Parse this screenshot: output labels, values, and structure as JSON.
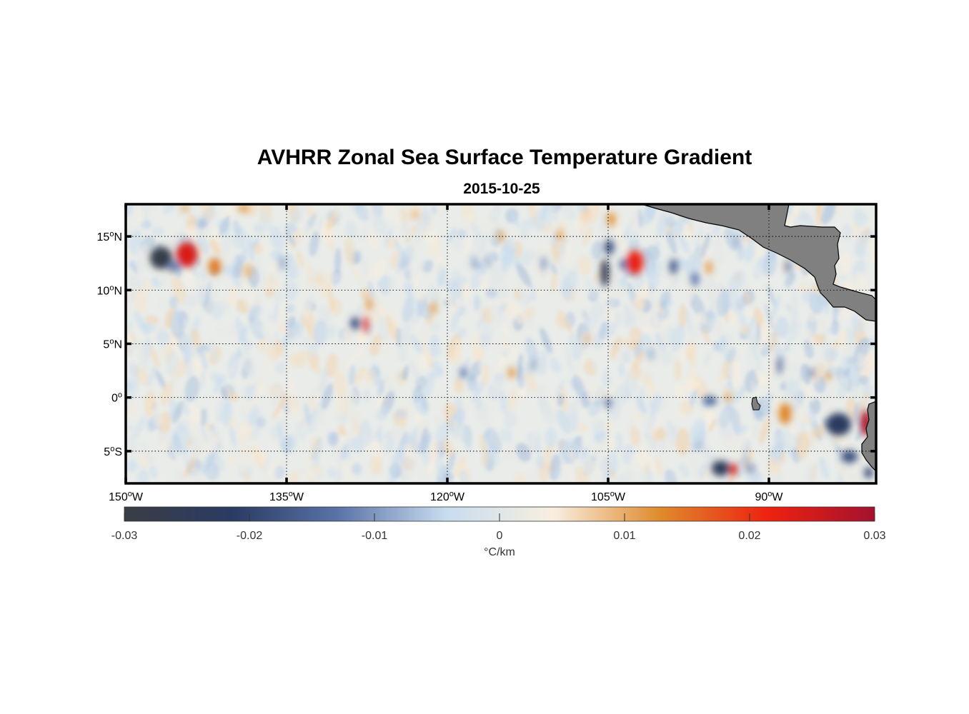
{
  "title": "AVHRR Zonal Sea Surface Temperature Gradient",
  "subtitle": "2015-10-25",
  "map": {
    "lon_range": [
      -150,
      -80
    ],
    "lat_range": [
      -8,
      18
    ],
    "lon_ticks": [
      {
        "value": -150,
        "label": "150",
        "suffix": "W"
      },
      {
        "value": -135,
        "label": "135",
        "suffix": "W"
      },
      {
        "value": -120,
        "label": "120",
        "suffix": "W"
      },
      {
        "value": -105,
        "label": "105",
        "suffix": "W"
      },
      {
        "value": -90,
        "label": "90",
        "suffix": "W"
      }
    ],
    "lat_ticks": [
      {
        "value": 15,
        "label": "15",
        "suffix": "N"
      },
      {
        "value": 10,
        "label": "10",
        "suffix": "N"
      },
      {
        "value": 5,
        "label": "5",
        "suffix": "N"
      },
      {
        "value": 0,
        "label": "0",
        "suffix": ""
      },
      {
        "value": -5,
        "label": "5",
        "suffix": "S"
      }
    ],
    "grid": true,
    "land_color": "#808080",
    "ocean_base_color": "#e9ece9"
  },
  "colorbar": {
    "min": -0.03,
    "max": 0.03,
    "ticks": [
      "-0.03",
      "-0.02",
      "-0.01",
      "0",
      "0.01",
      "0.02",
      "0.03"
    ],
    "units": "°C/km",
    "colors": [
      "#3a3d45",
      "#2a3b63",
      "#5b73a8",
      "#c8dcef",
      "#f8efe0",
      "#e08a2c",
      "#ee2210",
      "#a3122e"
    ]
  },
  "features": [
    {
      "lon": -146.7,
      "lat": 13.0,
      "v": -0.028,
      "rx": 1.6,
      "ry": 1.6
    },
    {
      "lon": -144.3,
      "lat": 13.3,
      "v": 0.024,
      "rx": 1.5,
      "ry": 1.8
    },
    {
      "lon": -145.5,
      "lat": 12.2,
      "v": -0.012,
      "rx": 0.9,
      "ry": 0.8
    },
    {
      "lon": -141.7,
      "lat": 12.2,
      "v": 0.014,
      "rx": 0.9,
      "ry": 1.2
    },
    {
      "lon": -138.6,
      "lat": 11.8,
      "v": 0.009,
      "rx": 0.6,
      "ry": 1.0
    },
    {
      "lon": -135.4,
      "lat": 12.5,
      "v": -0.009,
      "rx": 0.4,
      "ry": 1.0
    },
    {
      "lon": -128.6,
      "lat": 6.9,
      "v": -0.018,
      "rx": 0.7,
      "ry": 0.9
    },
    {
      "lon": -127.6,
      "lat": 6.8,
      "v": 0.024,
      "rx": 0.35,
      "ry": 1.2
    },
    {
      "lon": -127.3,
      "lat": 8.7,
      "v": 0.013,
      "rx": 0.35,
      "ry": 1.0
    },
    {
      "lon": -121.3,
      "lat": 8.3,
      "v": 0.012,
      "rx": 0.4,
      "ry": 0.9
    },
    {
      "lon": -117.5,
      "lat": 12.6,
      "v": -0.008,
      "rx": 0.4,
      "ry": 1.0
    },
    {
      "lon": -116.2,
      "lat": 12.7,
      "v": -0.008,
      "rx": 0.4,
      "ry": 1.0
    },
    {
      "lon": -115.0,
      "lat": 15.0,
      "v": 0.011,
      "rx": 0.4,
      "ry": 0.9
    },
    {
      "lon": -111.0,
      "lat": 12.5,
      "v": -0.01,
      "rx": 0.4,
      "ry": 1.0
    },
    {
      "lon": -105.3,
      "lat": 11.6,
      "v": -0.025,
      "rx": 0.6,
      "ry": 2.0
    },
    {
      "lon": -104.9,
      "lat": 14.0,
      "v": -0.018,
      "rx": 0.7,
      "ry": 1.1
    },
    {
      "lon": -104.7,
      "lat": 16.6,
      "v": 0.012,
      "rx": 0.6,
      "ry": 1.0
    },
    {
      "lon": -102.5,
      "lat": 12.6,
      "v": 0.022,
      "rx": 1.2,
      "ry": 1.7
    },
    {
      "lon": -103.6,
      "lat": 12.4,
      "v": -0.014,
      "rx": 0.5,
      "ry": 0.8
    },
    {
      "lon": -98.9,
      "lat": 12.2,
      "v": -0.016,
      "rx": 0.6,
      "ry": 1.1
    },
    {
      "lon": -96.9,
      "lat": 11.0,
      "v": -0.012,
      "rx": 0.6,
      "ry": 1.0
    },
    {
      "lon": -95.6,
      "lat": 12.1,
      "v": 0.011,
      "rx": 0.5,
      "ry": 1.0
    },
    {
      "lon": -93.0,
      "lat": 14.5,
      "v": -0.008,
      "rx": 0.4,
      "ry": 1.0
    },
    {
      "lon": -88.2,
      "lat": 12.2,
      "v": -0.012,
      "rx": 0.4,
      "ry": 1.0
    },
    {
      "lon": -84.0,
      "lat": 9.5,
      "v": 0.011,
      "rx": 0.5,
      "ry": 0.8
    },
    {
      "lon": -114.0,
      "lat": 2.3,
      "v": 0.012,
      "rx": 0.5,
      "ry": 0.8
    },
    {
      "lon": -112.0,
      "lat": 3.0,
      "v": -0.008,
      "rx": 0.5,
      "ry": 0.9
    },
    {
      "lon": -118.5,
      "lat": 2.3,
      "v": -0.012,
      "rx": 0.5,
      "ry": 0.8
    },
    {
      "lon": -105.0,
      "lat": -0.5,
      "v": -0.014,
      "rx": 0.5,
      "ry": 0.7
    },
    {
      "lon": -95.5,
      "lat": -0.3,
      "v": -0.016,
      "rx": 1.0,
      "ry": 0.6
    },
    {
      "lon": -93.8,
      "lat": 0.0,
      "v": 0.012,
      "rx": 0.4,
      "ry": 0.6
    },
    {
      "lon": -89.0,
      "lat": 3.0,
      "v": -0.015,
      "rx": 0.35,
      "ry": 1.3
    },
    {
      "lon": -88.5,
      "lat": -1.5,
      "v": 0.013,
      "rx": 0.9,
      "ry": 1.5
    },
    {
      "lon": -86.0,
      "lat": 2.3,
      "v": -0.012,
      "rx": 0.4,
      "ry": 0.6
    },
    {
      "lon": -84.5,
      "lat": 2.0,
      "v": 0.012,
      "rx": 0.4,
      "ry": 0.6
    },
    {
      "lon": -83.5,
      "lat": -2.5,
      "v": -0.022,
      "rx": 1.8,
      "ry": 1.6
    },
    {
      "lon": -80.9,
      "lat": -2.4,
      "v": 0.028,
      "rx": 0.8,
      "ry": 1.8
    },
    {
      "lon": -82.5,
      "lat": -5.5,
      "v": -0.018,
      "rx": 1.2,
      "ry": 0.9
    },
    {
      "lon": -80.7,
      "lat": -7.0,
      "v": -0.02,
      "rx": 0.6,
      "ry": 0.8
    },
    {
      "lon": -94.5,
      "lat": -6.6,
      "v": -0.024,
      "rx": 1.3,
      "ry": 1.1
    },
    {
      "lon": -93.3,
      "lat": -6.7,
      "v": 0.025,
      "rx": 0.5,
      "ry": 0.9
    },
    {
      "lon": -91.8,
      "lat": -6.6,
      "v": -0.014,
      "rx": 0.4,
      "ry": 0.7
    },
    {
      "lon": -96.5,
      "lat": -4.5,
      "v": -0.008,
      "rx": 0.4,
      "ry": 0.6
    },
    {
      "lon": -143.0,
      "lat": 16.2,
      "v": -0.008,
      "rx": 0.5,
      "ry": 0.6
    },
    {
      "lon": -139.0,
      "lat": 17.6,
      "v": 0.012,
      "rx": 0.8,
      "ry": 0.5
    },
    {
      "lon": -144.5,
      "lat": 17.6,
      "v": 0.011,
      "rx": 0.6,
      "ry": 0.4
    },
    {
      "lon": -123.0,
      "lat": 17.0,
      "v": 0.01,
      "rx": 0.5,
      "ry": 0.5
    },
    {
      "lon": -109.5,
      "lat": 15.1,
      "v": 0.012,
      "rx": 0.4,
      "ry": 0.8
    },
    {
      "lon": -124.0,
      "lat": 12.5,
      "v": -0.006,
      "rx": 0.4,
      "ry": 1.0
    },
    {
      "lon": -132.0,
      "lat": 11.0,
      "v": 0.006,
      "rx": 0.6,
      "ry": 0.9
    },
    {
      "lon": -107.0,
      "lat": 5.5,
      "v": 0.008,
      "rx": 0.5,
      "ry": 0.7
    },
    {
      "lon": -101.0,
      "lat": 4.0,
      "v": -0.007,
      "rx": 0.5,
      "ry": 0.9
    }
  ]
}
